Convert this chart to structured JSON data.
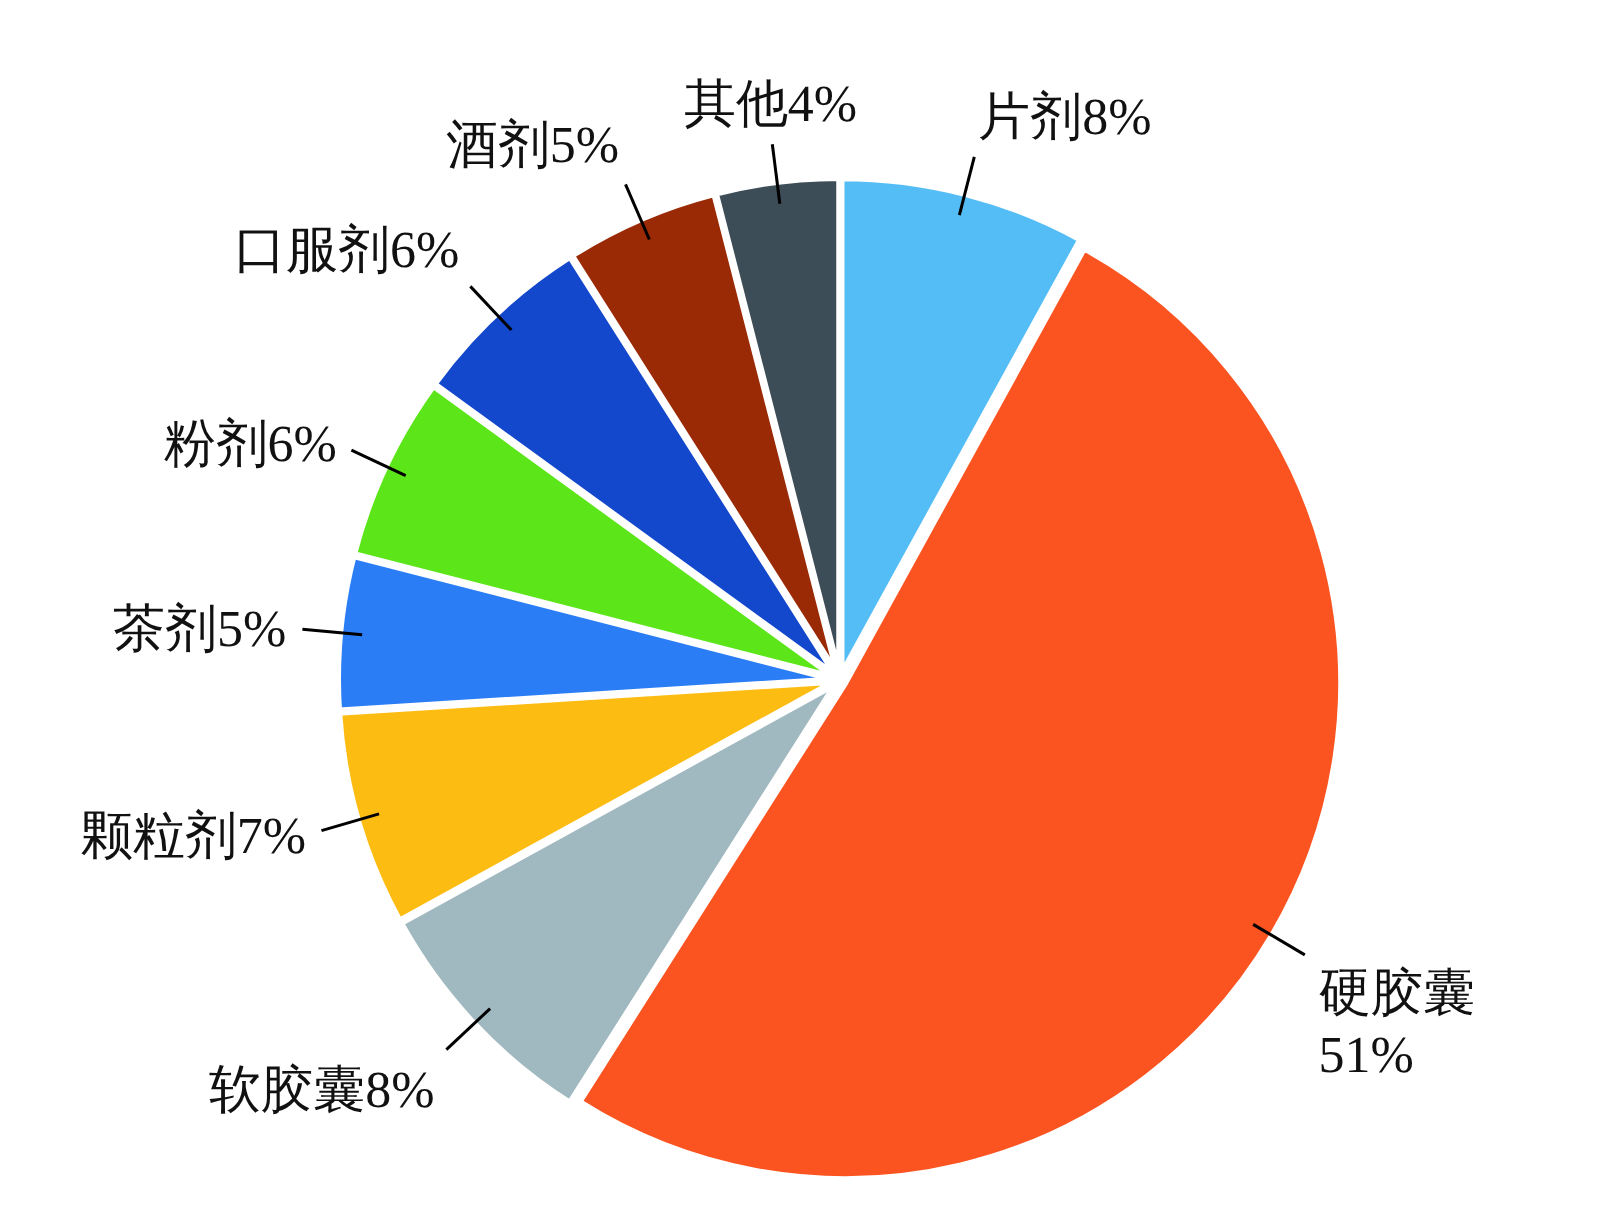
{
  "chart_data": {
    "type": "pie",
    "categories": [
      "片剂",
      "硬胶囊",
      "软胶囊",
      "颗粒剂",
      "茶剂",
      "粉剂",
      "口服剂",
      "酒剂",
      "其他"
    ],
    "values": [
      8,
      51,
      8,
      7,
      5,
      6,
      6,
      5,
      4
    ],
    "value_labels": [
      "8%",
      "51%",
      "8%",
      "7%",
      "5%",
      "6%",
      "6%",
      "5%",
      "4%"
    ],
    "colors": [
      "#55bdf5",
      "#fb5421",
      "#a0b8bf",
      "#fdbc12",
      "#2a7df5",
      "#5ce61a",
      "#1448cc",
      "#9a2a06",
      "#3d4d57"
    ]
  }
}
